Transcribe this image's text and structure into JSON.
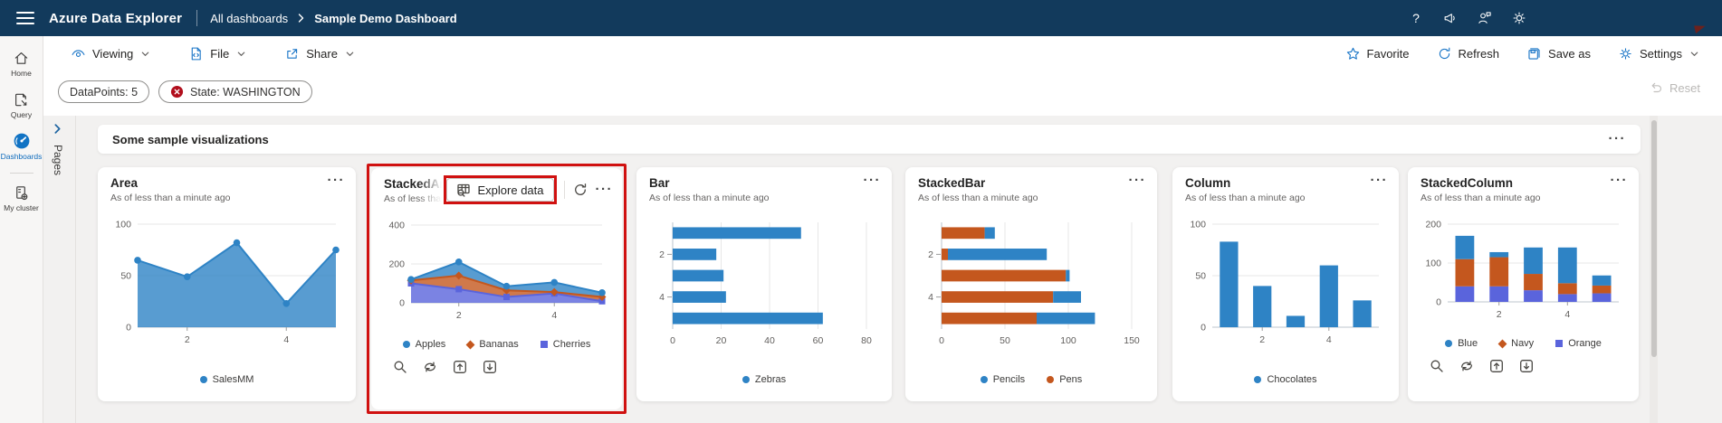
{
  "topbar": {
    "app_title": "Azure Data Explorer",
    "breadcrumb": [
      "All dashboards",
      "Sample Demo Dashboard"
    ],
    "icon_names": [
      "help-icon",
      "feedback-megaphone-icon",
      "user-feedback-icon",
      "settings-gear-icon"
    ]
  },
  "commandbar": {
    "left": [
      {
        "label": "Viewing",
        "icon": "eye-icon",
        "has_chevron": true
      },
      {
        "label": "File",
        "icon": "file-icon",
        "has_chevron": true
      },
      {
        "label": "Share",
        "icon": "share-icon",
        "has_chevron": true
      }
    ],
    "right": [
      {
        "label": "Favorite",
        "icon": "star-icon"
      },
      {
        "label": "Refresh",
        "icon": "refresh-icon"
      },
      {
        "label": "Save as",
        "icon": "save-as-icon"
      },
      {
        "label": "Settings",
        "icon": "gear-icon",
        "has_chevron": true
      }
    ]
  },
  "filterbar": {
    "pills": [
      {
        "label": "DataPoints: 5"
      },
      {
        "label": "State: WASHINGTON",
        "icon": "clear-filter-red-icon"
      }
    ],
    "reset_label": "Reset",
    "reset_disabled": true
  },
  "sidebar": {
    "items": [
      {
        "label": "Home",
        "icon": "home-icon",
        "active": false
      },
      {
        "label": "Query",
        "icon": "query-icon",
        "active": false
      },
      {
        "label": "Dashboards",
        "icon": "dashboards-gauge-icon",
        "active": true
      },
      {
        "label": "My cluster",
        "icon": "cluster-icon",
        "active": false
      }
    ]
  },
  "pages_panel": {
    "label": "Pages",
    "collapsed": true
  },
  "section": {
    "title": "Some sample visualizations"
  },
  "icons": {
    "more": "···",
    "help": "?"
  },
  "colors": {
    "topbar_bg": "#123a5c",
    "accent_blue": "#1673c6",
    "chart_blue": "#2e83c5",
    "chart_orange": "#c4571e",
    "chart_violet": "#5a64dc",
    "highlight_red": "#d01110",
    "pill_clear_red": "#b10e1c"
  },
  "tiles": [
    {
      "id": "area",
      "title": "Area",
      "subtitle": "As of less than a minute ago",
      "legend": [
        {
          "label": "SalesMM",
          "color": "#2e83c5",
          "marker": "circle"
        }
      ],
      "chart_data": {
        "type": "area",
        "title": "Area",
        "x": [
          1,
          2,
          3,
          4,
          5
        ],
        "xticks": [
          2,
          4
        ],
        "ymax": 100,
        "yticks": [
          0,
          50,
          100
        ],
        "series": [
          {
            "name": "SalesMM",
            "color": "#2e83c5",
            "marker": "circle",
            "values": [
              65,
              49,
              82,
              23,
              75
            ]
          }
        ]
      }
    },
    {
      "id": "stackedarea",
      "title": "StackedArea",
      "subtitle": "As of less than a minute ago",
      "highlighted": true,
      "explore_label": "Explore data",
      "has_refresh": true,
      "toolbar_icons": [
        "search",
        "cycle",
        "arrow-up-box",
        "arrow-down-box"
      ],
      "legend": [
        {
          "label": "Apples",
          "color": "#2e83c5",
          "marker": "circle"
        },
        {
          "label": "Bananas",
          "color": "#c4571e",
          "marker": "diamond"
        },
        {
          "label": "Cherries",
          "color": "#5a64dc",
          "marker": "square"
        }
      ],
      "chart_data": {
        "type": "area",
        "title": "StackedArea",
        "stacked": true,
        "x": [
          1,
          2,
          3,
          4,
          5
        ],
        "xticks": [
          2,
          4
        ],
        "ymax": 400,
        "yticks": [
          0,
          200,
          400
        ],
        "series": [
          {
            "name": "Cherries",
            "color": "#5a64dc",
            "marker": "square",
            "values": [
              100,
              70,
              30,
              48,
              8
            ]
          },
          {
            "name": "Bananas",
            "color": "#c4571e",
            "marker": "diamond",
            "values": [
              15,
              70,
              34,
              7,
              22
            ]
          },
          {
            "name": "Apples",
            "color": "#2e83c5",
            "marker": "circle",
            "values": [
              5,
              70,
              21,
              50,
              22
            ]
          }
        ]
      }
    },
    {
      "id": "bar",
      "title": "Bar",
      "subtitle": "As of less than a minute ago",
      "legend": [
        {
          "label": "Zebras",
          "color": "#2e83c5",
          "marker": "circle"
        }
      ],
      "chart_data": {
        "type": "bar",
        "title": "Bar",
        "categories": [
          1,
          2,
          3,
          4,
          5
        ],
        "category_ticks": [
          2,
          4
        ],
        "xmax": 80,
        "xticks": [
          0,
          20,
          40,
          60,
          80
        ],
        "series": [
          {
            "name": "Zebras",
            "color": "#2e83c5",
            "values": [
              53,
              18,
              21,
              22,
              62
            ]
          }
        ]
      }
    },
    {
      "id": "stackedbar",
      "title": "StackedBar",
      "subtitle": "As of less than a minute ago",
      "legend": [
        {
          "label": "Pencils",
          "color": "#2e83c5",
          "marker": "circle"
        },
        {
          "label": "Pens",
          "color": "#c4571e",
          "marker": "circle"
        }
      ],
      "chart_data": {
        "type": "bar",
        "title": "StackedBar",
        "stacked": true,
        "categories": [
          1,
          2,
          3,
          4,
          5
        ],
        "category_ticks": [
          2,
          4
        ],
        "xmax": 150,
        "xticks": [
          0,
          50,
          100,
          150
        ],
        "series": [
          {
            "name": "Pens",
            "color": "#c4571e",
            "values": [
              34,
              5,
              98,
              88,
              75
            ]
          },
          {
            "name": "Pencils",
            "color": "#2e83c5",
            "values": [
              8,
              78,
              3,
              22,
              46
            ]
          }
        ]
      }
    },
    {
      "id": "column",
      "title": "Column",
      "subtitle": "As of less than a minute ago",
      "legend": [
        {
          "label": "Chocolates",
          "color": "#2e83c5",
          "marker": "circle"
        }
      ],
      "chart_data": {
        "type": "column",
        "title": "Column",
        "categories": [
          1,
          2,
          3,
          4,
          5
        ],
        "xticks": [
          2,
          4
        ],
        "ymax": 100,
        "yticks": [
          0,
          50,
          100
        ],
        "series": [
          {
            "name": "Chocolates",
            "color": "#2e83c5",
            "values": [
              83,
              40,
              11,
              60,
              26
            ]
          }
        ]
      }
    },
    {
      "id": "stackedcolumn",
      "title": "StackedColumn",
      "subtitle": "As of less than a minute ago",
      "toolbar_icons": [
        "search",
        "cycle",
        "arrow-up-box",
        "arrow-down-box"
      ],
      "legend": [
        {
          "label": "Blue",
          "color": "#2e83c5",
          "marker": "circle"
        },
        {
          "label": "Navy",
          "color": "#c4571e",
          "marker": "diamond"
        },
        {
          "label": "Orange",
          "color": "#5a64dc",
          "marker": "square"
        }
      ],
      "chart_data": {
        "type": "column",
        "title": "StackedColumn",
        "stacked": true,
        "categories": [
          1,
          2,
          3,
          4,
          5
        ],
        "xticks": [
          2,
          4
        ],
        "ymax": 200,
        "yticks": [
          0,
          100,
          200
        ],
        "series": [
          {
            "name": "Orange",
            "color": "#5a64dc",
            "values": [
              40,
              40,
              30,
              20,
              22
            ]
          },
          {
            "name": "Navy",
            "color": "#c4571e",
            "values": [
              70,
              75,
              42,
              28,
              20
            ]
          },
          {
            "name": "Blue",
            "color": "#2e83c5",
            "values": [
              60,
              13,
              68,
              92,
              26
            ]
          }
        ]
      }
    }
  ]
}
